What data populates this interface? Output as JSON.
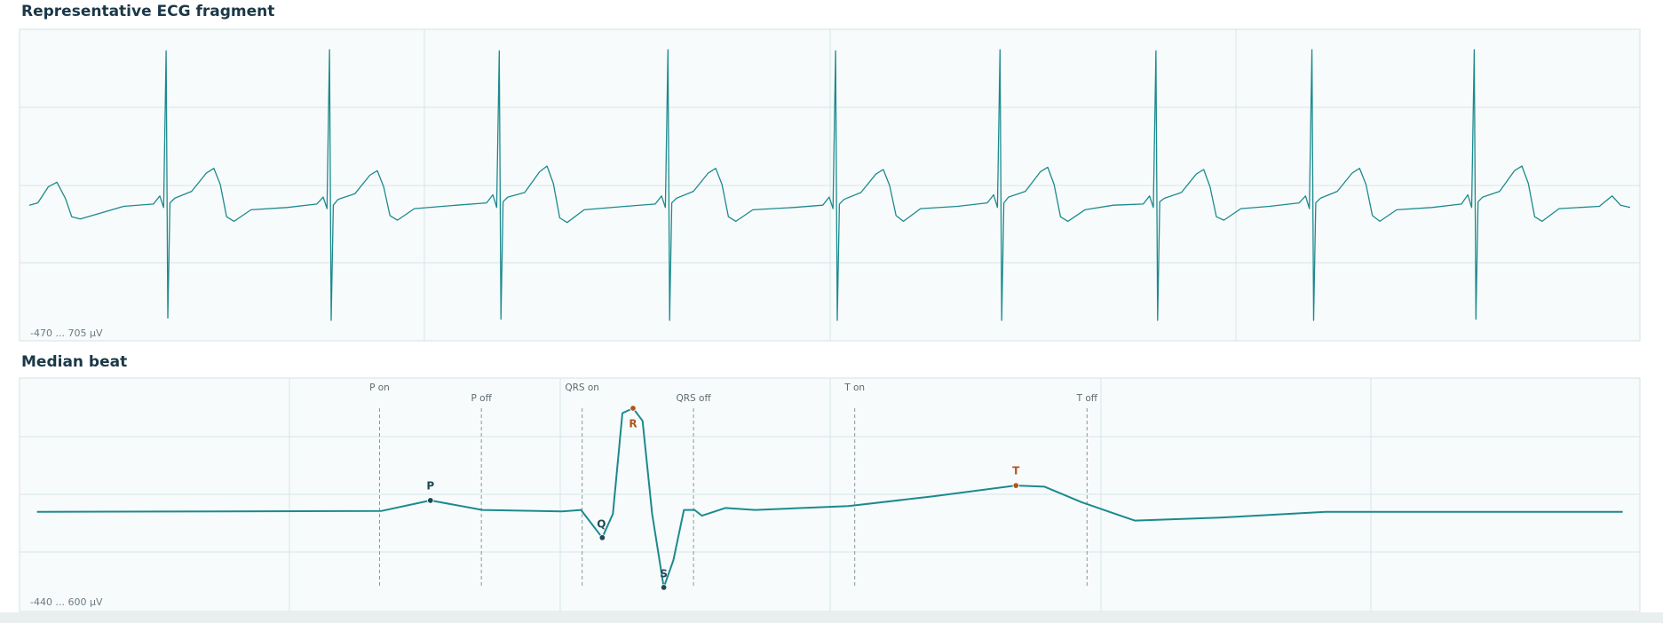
{
  "chart_data": [
    {
      "type": "line",
      "title": "Representative ECG fragment",
      "range_label": "-470 ... 705 µV",
      "color": "#1b8a8e",
      "xlim": [
        0,
        7545
      ],
      "ylim": [
        -470,
        705
      ],
      "x": [
        0,
        40,
        90,
        130,
        170,
        200,
        240,
        445,
        585,
        615,
        633,
        645,
        653,
        663,
        685,
        765,
        835,
        870,
        900,
        930,
        965,
        1045,
        1215,
        1355,
        1385,
        1403,
        1415,
        1423,
        1433,
        1455,
        1535,
        1605,
        1640,
        1670,
        1700,
        1735,
        1815,
        2015,
        2155,
        2185,
        2203,
        2215,
        2223,
        2233,
        2255,
        2335,
        2405,
        2440,
        2470,
        2500,
        2535,
        2615,
        2810,
        2950,
        2980,
        2998,
        3010,
        3018,
        3028,
        3050,
        3130,
        3200,
        3235,
        3265,
        3295,
        3330,
        3410,
        3600,
        3740,
        3770,
        3788,
        3800,
        3808,
        3818,
        3840,
        3920,
        3990,
        4025,
        4055,
        4085,
        4120,
        4200,
        4375,
        4515,
        4545,
        4563,
        4575,
        4583,
        4593,
        4615,
        4695,
        4765,
        4800,
        4830,
        4860,
        4895,
        4975,
        5110,
        5250,
        5280,
        5298,
        5310,
        5318,
        5328,
        5350,
        5430,
        5500,
        5535,
        5565,
        5595,
        5630,
        5710,
        5845,
        5985,
        6015,
        6033,
        6045,
        6053,
        6063,
        6085,
        6165,
        6235,
        6270,
        6300,
        6330,
        6365,
        6445,
        6610,
        6750,
        6780,
        6798,
        6810,
        6818,
        6828,
        6850,
        6930,
        7000,
        7035,
        7065,
        7095,
        7130,
        7210,
        7400,
        7460,
        7500,
        7545
      ],
      "values": [
        30,
        40,
        110,
        130,
        60,
        -20,
        -30,
        25,
        35,
        70,
        20,
        700,
        -460,
        40,
        60,
        90,
        170,
        190,
        120,
        -20,
        -40,
        10,
        20,
        35,
        65,
        15,
        705,
        -470,
        30,
        55,
        80,
        160,
        180,
        110,
        -15,
        -35,
        15,
        30,
        40,
        75,
        20,
        700,
        -465,
        45,
        65,
        85,
        175,
        200,
        125,
        -25,
        -45,
        10,
        25,
        35,
        70,
        20,
        705,
        -470,
        40,
        60,
        90,
        170,
        190,
        120,
        -20,
        -40,
        10,
        20,
        30,
        65,
        15,
        700,
        -470,
        35,
        55,
        85,
        165,
        185,
        115,
        -15,
        -40,
        15,
        25,
        40,
        75,
        20,
        705,
        -470,
        40,
        65,
        90,
        175,
        195,
        120,
        -20,
        -40,
        10,
        30,
        35,
        70,
        20,
        700,
        -470,
        45,
        60,
        85,
        165,
        185,
        110,
        -20,
        -35,
        15,
        25,
        40,
        70,
        15,
        705,
        -470,
        40,
        60,
        90,
        170,
        190,
        120,
        -15,
        -40,
        10,
        20,
        35,
        75,
        20,
        705,
        -465,
        45,
        65,
        90,
        180,
        200,
        125,
        -20,
        -40,
        15,
        25,
        70,
        30,
        20
      ]
    },
    {
      "type": "line",
      "title": "Median beat",
      "range_label": "-440 ... 600 µV",
      "color": "#1b8a8e",
      "xlim": [
        -565,
        935
      ],
      "ylim": [
        -440,
        600
      ],
      "x": [
        -562,
        -237,
        -191,
        -142,
        -67,
        -49,
        -29,
        -19,
        -10,
        0,
        9,
        18,
        29,
        38,
        48,
        58,
        65,
        87,
        115,
        203,
        283,
        361,
        388,
        423,
        473,
        553,
        653,
        933
      ],
      "values": [
        10,
        15,
        69,
        20,
        12,
        20,
        -123,
        0,
        520,
        545,
        480,
        0,
        -380,
        -240,
        20,
        20,
        -10,
        30,
        20,
        40,
        90,
        146,
        140,
        60,
        -35,
        -20,
        10,
        10
      ],
      "markers": [
        {
          "label": "P on",
          "x": -239
        },
        {
          "label": "P off",
          "x": -143
        },
        {
          "label": "QRS on",
          "x": -48
        },
        {
          "label": "QRS off",
          "x": 57
        },
        {
          "label": "T on",
          "x": 209
        },
        {
          "label": "T off",
          "x": 428
        }
      ],
      "waves": [
        {
          "label": "P",
          "x": -191,
          "y": 69,
          "color": "#1f4a57"
        },
        {
          "label": "Q",
          "x": -29,
          "y": -123,
          "color": "#1f4a57"
        },
        {
          "label": "R",
          "x": 0,
          "y": 545,
          "color": "#b0571f"
        },
        {
          "label": "S",
          "x": 29,
          "y": -380,
          "color": "#1f4a57"
        },
        {
          "label": "T",
          "x": 361,
          "y": 146,
          "color": "#b0571f"
        }
      ]
    }
  ]
}
